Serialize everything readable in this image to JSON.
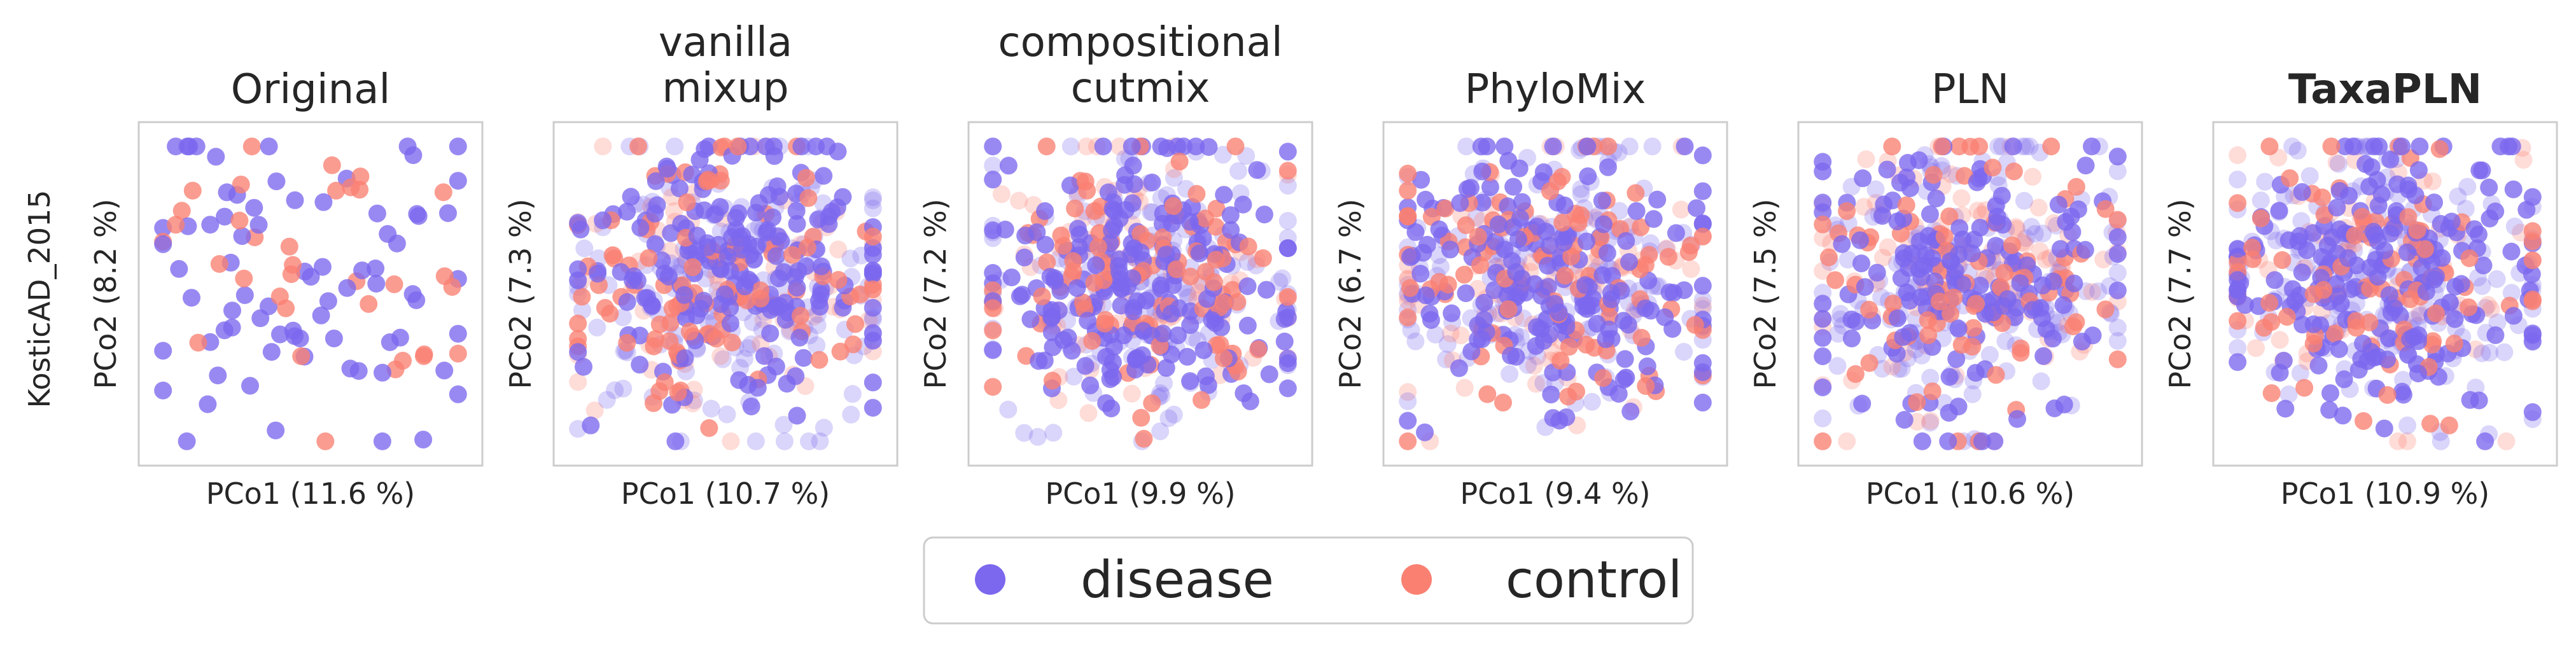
{
  "figure": {
    "row_label": "KosticAD_2015"
  },
  "colors": {
    "disease": "#7B68EE",
    "control": "#FA8072",
    "frame": "#cccccc"
  },
  "legend": {
    "items": [
      {
        "label": "disease",
        "color": "#7B68EE"
      },
      {
        "label": "control",
        "color": "#FA8072"
      }
    ]
  },
  "chart_data": [
    {
      "type": "scatter",
      "title": "Original",
      "bold_title": false,
      "xlabel": "PCo1 (11.6 %)",
      "ylabel": "PCo2 (8.2 %)",
      "n_points": 110,
      "control_fraction": 0.25,
      "faded_fraction": 0.0,
      "seed": 11,
      "scatter_shape": "sparse"
    },
    {
      "type": "scatter",
      "title": "vanilla\nmixup",
      "bold_title": false,
      "xlabel": "PCo1 (10.7 %)",
      "ylabel": "PCo2 (7.3 %)",
      "n_points": 520,
      "control_fraction": 0.33,
      "faded_fraction": 0.45,
      "seed": 23,
      "scatter_shape": "dense"
    },
    {
      "type": "scatter",
      "title": "compositional\ncutmix",
      "bold_title": false,
      "xlabel": "PCo1 (9.9 %)",
      "ylabel": "PCo2 (7.2 %)",
      "n_points": 520,
      "control_fraction": 0.33,
      "faded_fraction": 0.45,
      "seed": 37,
      "scatter_shape": "dense"
    },
    {
      "type": "scatter",
      "title": "PhyloMix",
      "bold_title": false,
      "xlabel": "PCo1 (9.4 %)",
      "ylabel": "PCo2 (6.7 %)",
      "n_points": 520,
      "control_fraction": 0.33,
      "faded_fraction": 0.45,
      "seed": 41,
      "scatter_shape": "dense"
    },
    {
      "type": "scatter",
      "title": "PLN",
      "bold_title": false,
      "xlabel": "PCo1 (10.6 %)",
      "ylabel": "PCo2 (7.5 %)",
      "n_points": 500,
      "control_fraction": 0.33,
      "faded_fraction": 0.5,
      "seed": 53,
      "scatter_shape": "dense"
    },
    {
      "type": "scatter",
      "title": "TaxaPLN",
      "bold_title": true,
      "xlabel": "PCo1 (10.9 %)",
      "ylabel": "PCo2 (7.7 %)",
      "n_points": 520,
      "control_fraction": 0.33,
      "faded_fraction": 0.45,
      "seed": 67,
      "scatter_shape": "dense"
    }
  ]
}
